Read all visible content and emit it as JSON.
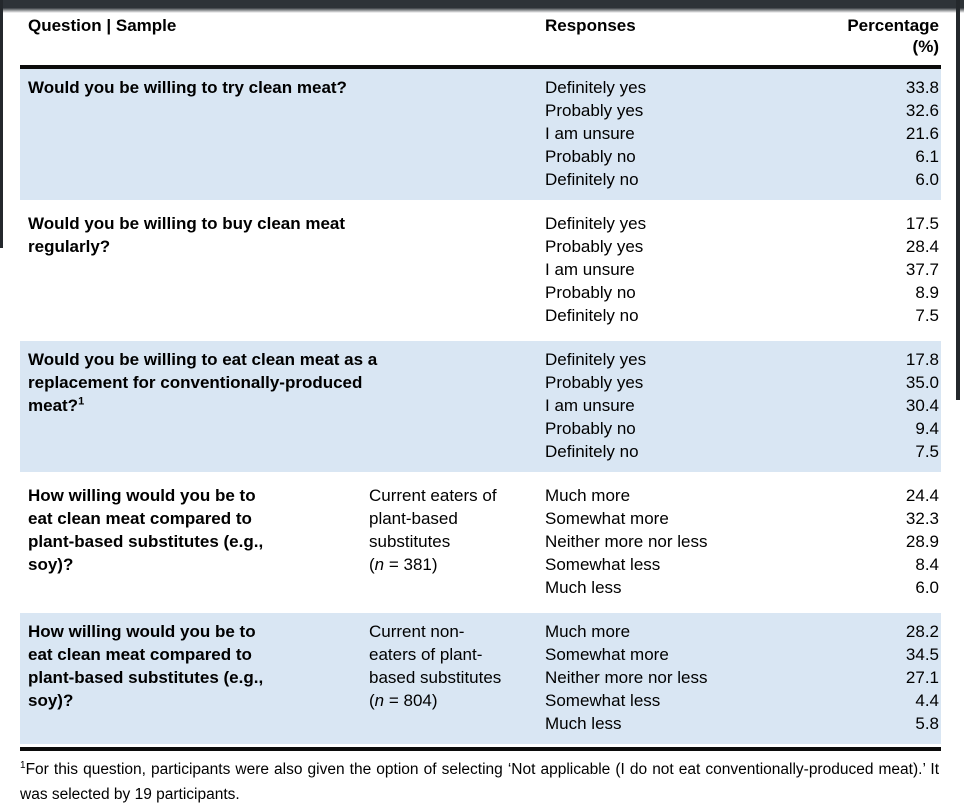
{
  "page": {
    "background_color": "#ffffff",
    "shaded_row_color": "#d9e6f3",
    "rule_color": "#0b0b0b",
    "edge_color": "#2e3338"
  },
  "table": {
    "header": {
      "question": "Question | Sample",
      "responses": "Responses",
      "percentage": "Percentage (%)"
    },
    "rows": [
      {
        "question_lines": [
          "Would you be willing to try clean meat?"
        ],
        "question_sup": "",
        "responses": [
          {
            "label": "Definitely yes",
            "value": "33.8"
          },
          {
            "label": "Probably yes",
            "value": "32.6"
          },
          {
            "label": "I am unsure",
            "value": "21.6"
          },
          {
            "label": "Probably no",
            "value": "6.1"
          },
          {
            "label": "Definitely no",
            "value": "6.0"
          }
        ]
      },
      {
        "question_lines": [
          "Would you be willing to buy clean meat",
          "regularly?"
        ],
        "question_sup": "",
        "responses": [
          {
            "label": "Definitely yes",
            "value": "17.5"
          },
          {
            "label": "Probably yes",
            "value": "28.4"
          },
          {
            "label": "I am unsure",
            "value": "37.7"
          },
          {
            "label": "Probably no",
            "value": "8.9"
          },
          {
            "label": "Definitely no",
            "value": "7.5"
          }
        ]
      },
      {
        "question_lines": [
          "Would you be willing to eat clean meat as a",
          "replacement for conventionally-produced",
          "meat?"
        ],
        "question_sup": "1",
        "responses": [
          {
            "label": "Definitely yes",
            "value": "17.8"
          },
          {
            "label": "Probably yes",
            "value": "35.0"
          },
          {
            "label": "I am unsure",
            "value": "30.4"
          },
          {
            "label": "Probably no",
            "value": "9.4"
          },
          {
            "label": "Definitely no",
            "value": "7.5"
          }
        ]
      },
      {
        "question_lines": [
          "How willing would you be to",
          "eat clean meat compared to",
          "plant-based substitutes (e.g.,",
          "soy)?"
        ],
        "question_sup": "",
        "sample_lines": [
          "Current eaters of",
          "plant-based",
          "substitutes"
        ],
        "sample_n_pre": "(",
        "sample_n_italic": "n",
        "sample_n_post": " = 381)",
        "responses": [
          {
            "label": "Much more",
            "value": "24.4"
          },
          {
            "label": "Somewhat more",
            "value": "32.3"
          },
          {
            "label": "Neither more nor less",
            "value": "28.9"
          },
          {
            "label": "Somewhat less",
            "value": "8.4"
          },
          {
            "label": "Much less",
            "value": "6.0"
          }
        ]
      },
      {
        "question_lines": [
          "How willing would you be to",
          "eat clean meat compared to",
          "plant-based substitutes (e.g.,",
          "soy)?"
        ],
        "question_sup": "",
        "sample_lines": [
          "Current non-",
          "eaters of plant-",
          "based substitutes"
        ],
        "sample_n_pre": "(",
        "sample_n_italic": "n",
        "sample_n_post": " = 804)",
        "responses": [
          {
            "label": "Much more",
            "value": "28.2"
          },
          {
            "label": "Somewhat more",
            "value": "34.5"
          },
          {
            "label": "Neither more nor less",
            "value": "27.1"
          },
          {
            "label": "Somewhat less",
            "value": "4.4"
          },
          {
            "label": "Much less",
            "value": "5.8"
          }
        ]
      }
    ],
    "footnote": {
      "sup": "1",
      "text": "For this question, participants were also given the option of selecting ‘Not applicable (I do not eat conventionally-produced meat).’ It was selected by 19 participants."
    }
  }
}
